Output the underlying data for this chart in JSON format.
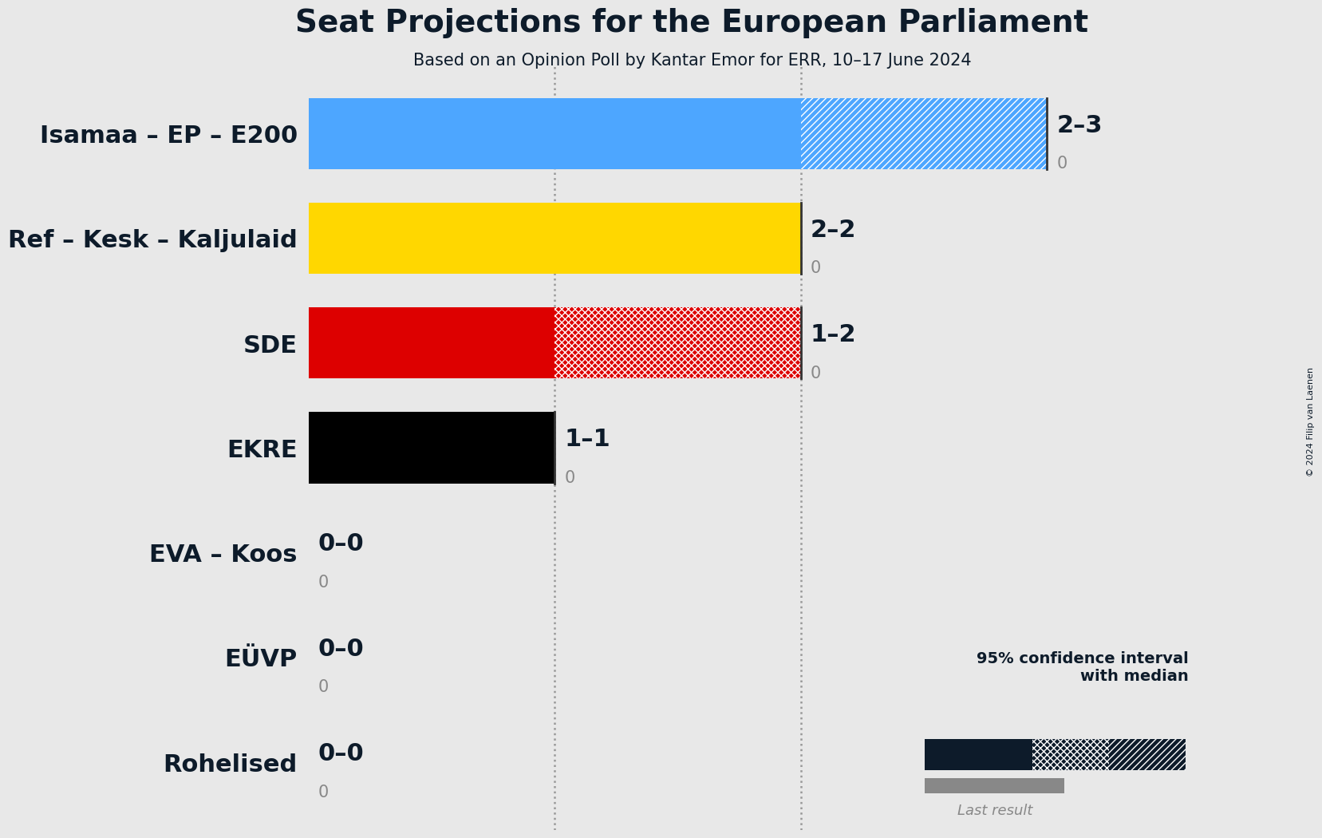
{
  "title": "Seat Projections for the European Parliament",
  "subtitle": "Based on an Opinion Poll by Kantar Emor for ERR, 10–17 June 2024",
  "copyright": "© 2024 Filip van Laenen",
  "background_color": "#E8E8E8",
  "parties": [
    "Isamaa – EP – E200",
    "Ref – Kesk – Kaljulaid",
    "SDE",
    "EKRE",
    "EVA – Koos",
    "EÜVP",
    "Rohelised"
  ],
  "median_seats": [
    2,
    2,
    1,
    1,
    0,
    0,
    0
  ],
  "ci_high": [
    3,
    2,
    2,
    1,
    0,
    0,
    0
  ],
  "last_result": [
    0,
    0,
    0,
    0,
    0,
    0,
    0
  ],
  "bar_colors": [
    "#4DA6FF",
    "#FFD700",
    "#DD0000",
    "#000000",
    "#000000",
    "#000000",
    "#000000"
  ],
  "hatch_patterns": [
    "////",
    null,
    "xxxx",
    null,
    null,
    null,
    null
  ],
  "seat_labels": [
    "2–3",
    "2–2",
    "1–2",
    "1–1",
    "0–0",
    "0–0",
    "0–0"
  ],
  "xlim_max": 3,
  "bar_height": 0.68,
  "title_fontsize": 28,
  "subtitle_fontsize": 15,
  "party_label_fontsize": 22,
  "seat_label_fontsize": 22,
  "last_result_label_fontsize": 15,
  "navy_color": "#0D1B2A",
  "gray_color": "#888888",
  "dotted_line_color": "#999999",
  "vline_color": "#333333",
  "legend_text": "95% confidence interval\nwith median",
  "legend_last_result": "Last result"
}
